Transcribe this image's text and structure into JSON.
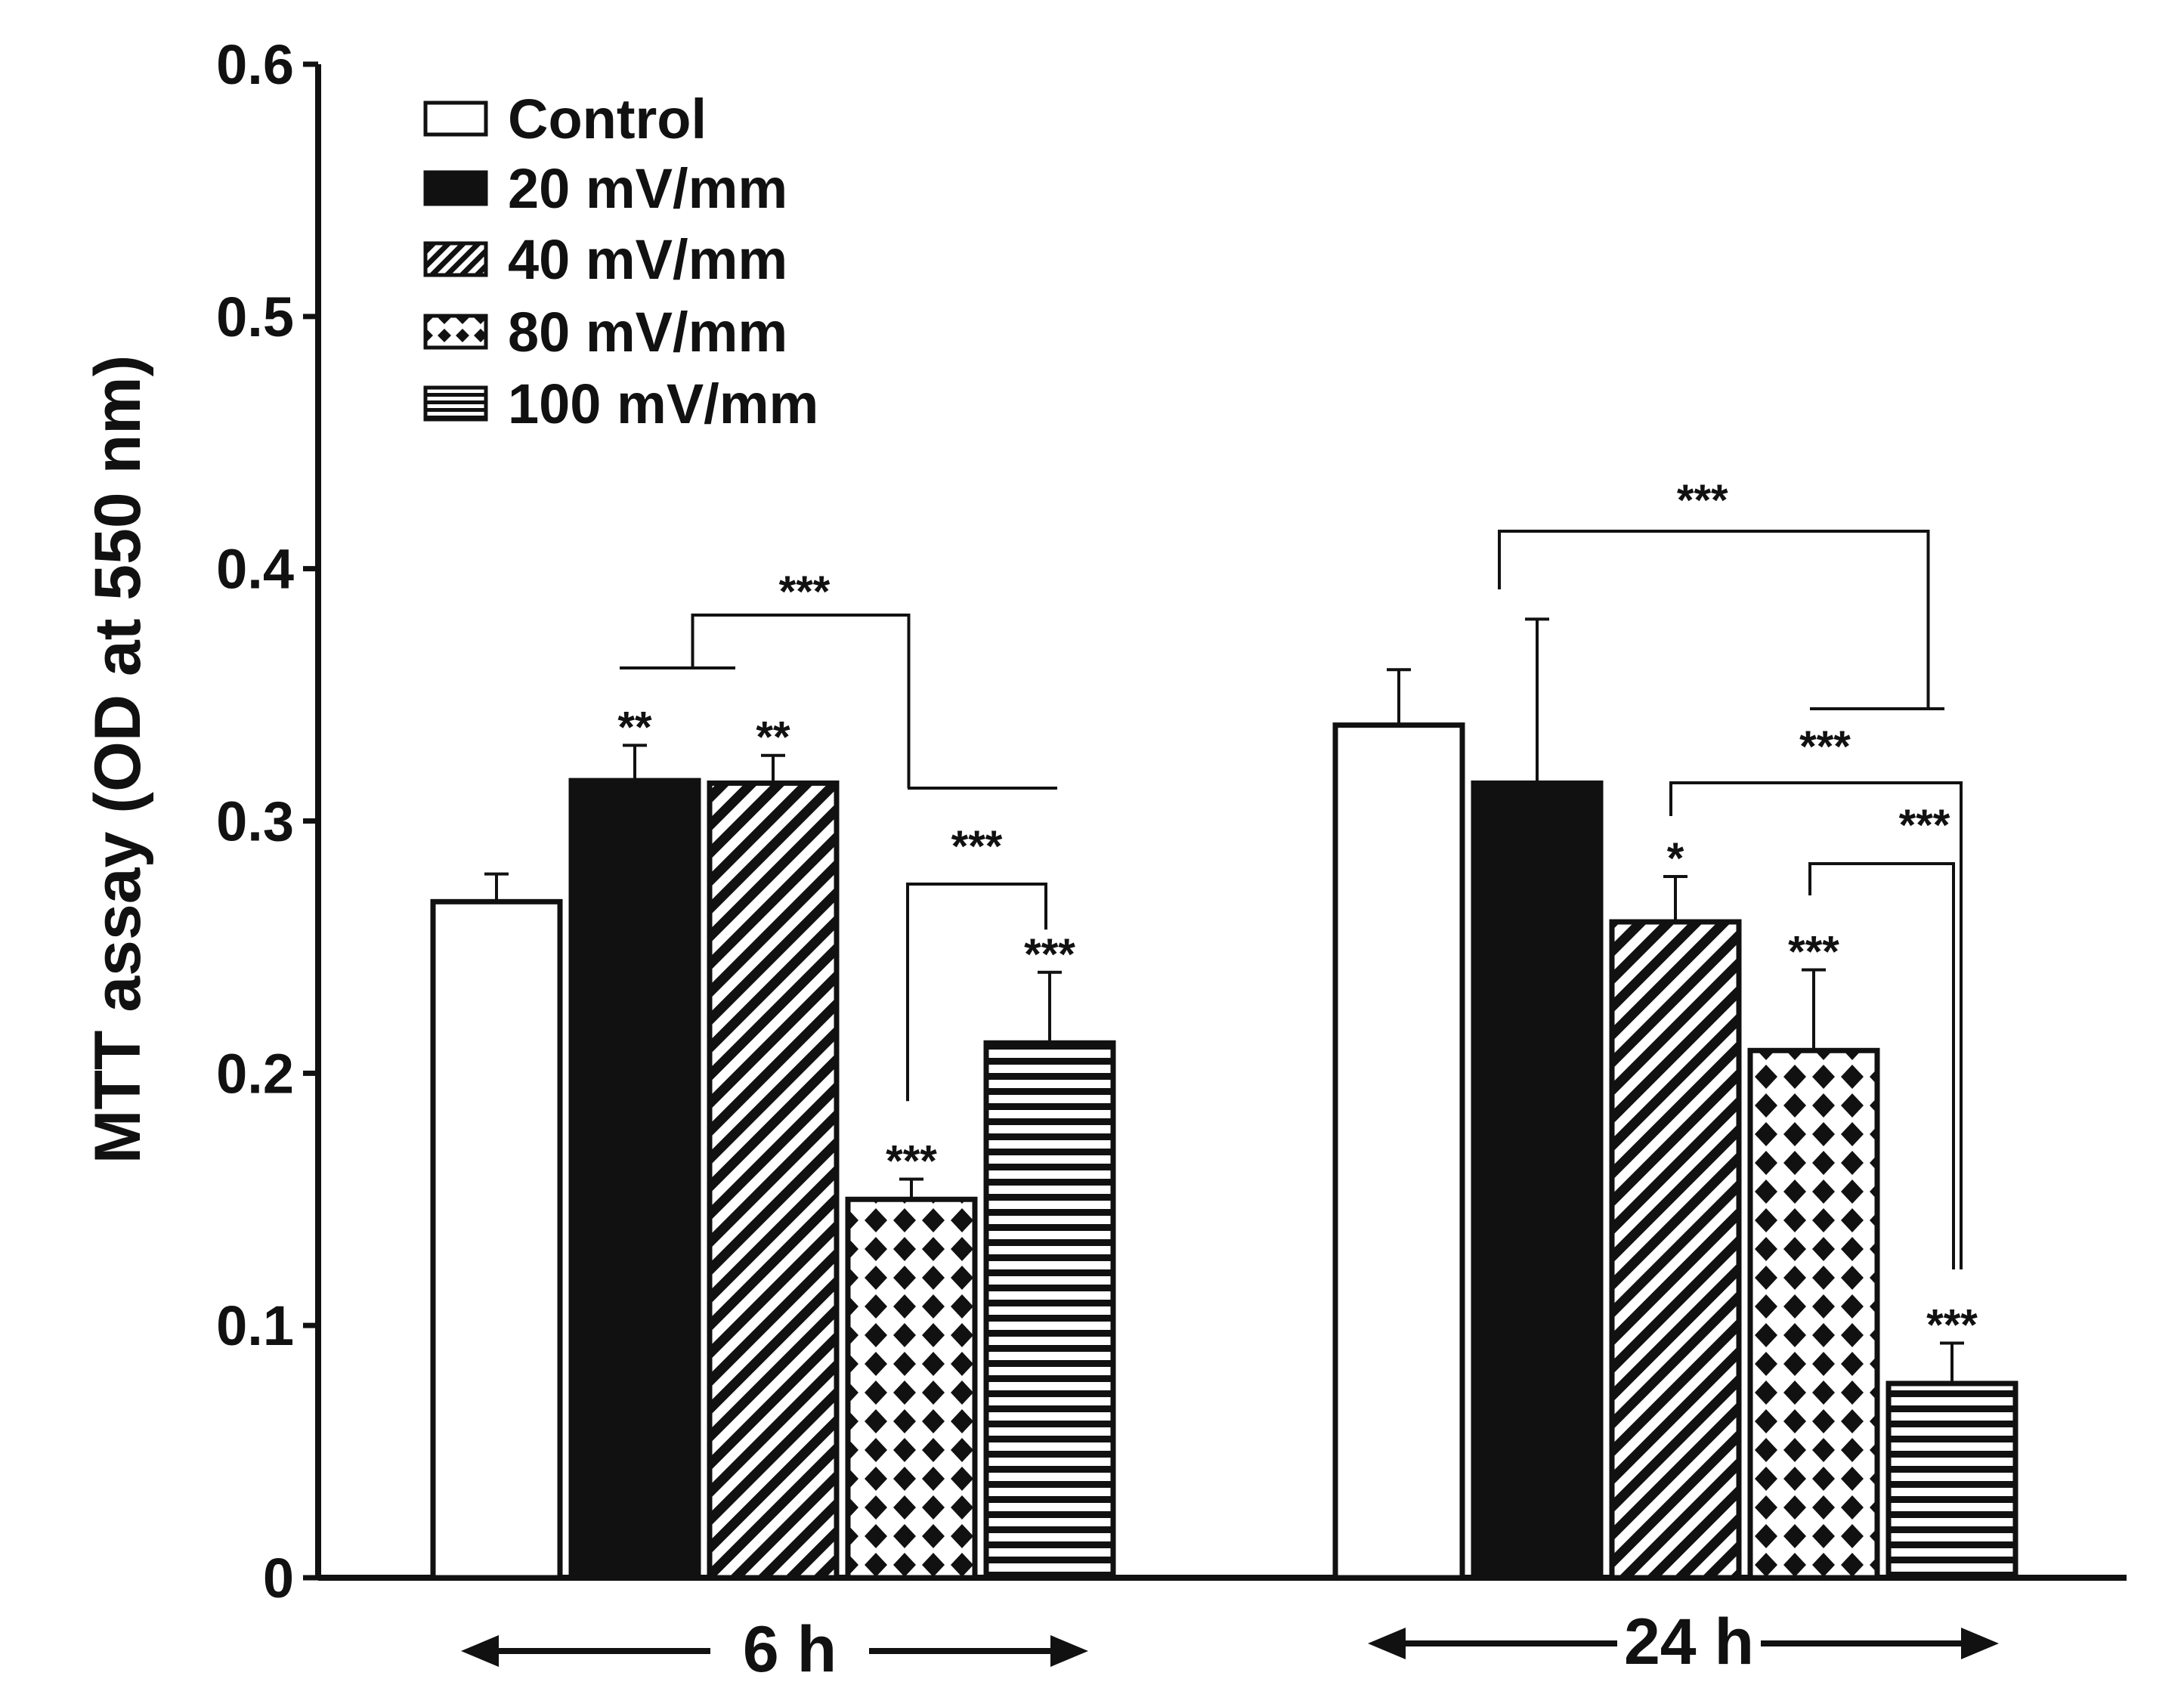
{
  "chart_data": {
    "type": "bar",
    "ylabel": "MTT assay (OD at 550 nm)",
    "ylim": [
      0,
      0.6
    ],
    "yticks": [
      0,
      0.1,
      0.2,
      0.3,
      0.4,
      0.5,
      0.6
    ],
    "ytick_labels": [
      "0",
      "0.1",
      "0.2",
      "0.3",
      "0.4",
      "0.5",
      "0.6"
    ],
    "groups": [
      "6 h",
      "24 h"
    ],
    "legend_position": "top-left",
    "series": [
      {
        "name": "Control",
        "pattern": "white",
        "values": [
          0.268,
          0.338
        ],
        "errors": [
          0.011,
          0.022
        ],
        "sig": [
          "",
          ""
        ]
      },
      {
        "name": "20 mV/mm",
        "pattern": "black",
        "values": [
          0.316,
          0.315
        ],
        "errors": [
          0.014,
          0.065
        ],
        "sig": [
          "**",
          ""
        ]
      },
      {
        "name": "40 mV/mm",
        "pattern": "diagonal",
        "values": [
          0.315,
          0.26
        ],
        "errors": [
          0.011,
          0.018
        ],
        "sig": [
          "**",
          "*"
        ]
      },
      {
        "name": "80 mV/mm",
        "pattern": "diamond",
        "values": [
          0.15,
          0.209
        ],
        "errors": [
          0.008,
          0.032
        ],
        "sig": [
          "***",
          "***"
        ]
      },
      {
        "name": "100 mV/mm",
        "pattern": "horizontal",
        "values": [
          0.212,
          0.077
        ],
        "errors": [
          0.028,
          0.016
        ],
        "sig": [
          "***",
          "***"
        ]
      }
    ],
    "brackets": [
      {
        "group": 0,
        "label": "***",
        "desc": "20 & 40 mV/mm vs 80 & 100 mV/mm"
      },
      {
        "group": 0,
        "label": "***",
        "desc": "80 vs 100 mV/mm"
      },
      {
        "group": 1,
        "label": "***",
        "desc": "20 mV/mm vs 80 & 100 mV/mm"
      },
      {
        "group": 1,
        "label": "***",
        "desc": "40 vs 100 mV/mm"
      },
      {
        "group": 1,
        "label": "***",
        "desc": "80 vs 100 mV/mm"
      }
    ]
  },
  "colors": {
    "ink": "#111111",
    "background": "#ffffff"
  }
}
